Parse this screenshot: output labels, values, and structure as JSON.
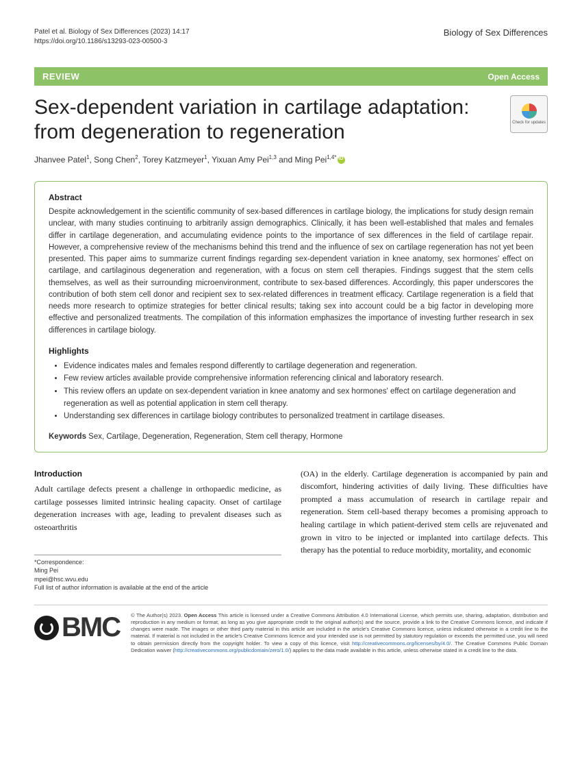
{
  "header": {
    "citation": "Patel et al. Biology of Sex Differences     (2023) 14:17",
    "doi": "https://doi.org/10.1186/s13293-023-00500-3",
    "journal": "Biology of Sex Differences"
  },
  "banner": {
    "type": "REVIEW",
    "access": "Open Access"
  },
  "title": "Sex-dependent variation in cartilage adaptation: from degeneration to regeneration",
  "checkUpdates": "Check for updates",
  "authors_html": "Jhanvee Patel<sup>1</sup>, Song Chen<sup>2</sup>, Torey Katzmeyer<sup>1</sup>, Yixuan Amy Pei<sup>1,3</sup> and Ming Pei<sup>1,4*</sup>",
  "abstract": {
    "heading": "Abstract",
    "text": "Despite acknowledgement in the scientific community of sex-based differences in cartilage biology, the implications for study design remain unclear, with many studies continuing to arbitrarily assign demographics. Clinically, it has been well-established that males and females differ in cartilage degeneration, and accumulating evidence points to the importance of sex differences in the field of cartilage repair. However, a comprehensive review of the mechanisms behind this trend and the influence of sex on cartilage regeneration has not yet been presented. This paper aims to summarize current findings regarding sex-dependent variation in knee anatomy, sex hormones' effect on cartilage, and cartilaginous degeneration and regeneration, with a focus on stem cell therapies. Findings suggest that the stem cells themselves, as well as their surrounding microenvironment, contribute to sex-based differences. Accordingly, this paper underscores the contribution of both stem cell donor and recipient sex to sex-related differences in treatment efficacy. Cartilage regeneration is a field that needs more research to optimize strategies for better clinical results; taking sex into account could be a big factor in developing more effective and personalized treatments. The compilation of this information emphasizes the importance of investing further research in sex differences in cartilage biology."
  },
  "highlights": {
    "heading": "Highlights",
    "items": [
      "Evidence indicates males and females respond differently to cartilage degeneration and regeneration.",
      "Few review articles available provide comprehensive information referencing clinical and laboratory research.",
      "This review offers an update on sex-dependent variation in knee anatomy and sex hormones' effect on cartilage degeneration and regeneration as well as potential application in stem cell therapy.",
      "Understanding sex differences in cartilage biology contributes to personalized treatment in cartilage diseases."
    ]
  },
  "keywords": {
    "label": "Keywords",
    "text": "Sex, Cartilage, Degeneration, Regeneration, Stem cell therapy, Hormone"
  },
  "intro": {
    "heading": "Introduction",
    "col1": "Adult cartilage defects present a challenge in orthopaedic medicine, as cartilage possesses limited intrinsic healing capacity. Onset of cartilage degeneration increases with age, leading to prevalent diseases such as osteoarthritis",
    "col2": "(OA) in the elderly. Cartilage degeneration is accompanied by pain and discomfort, hindering activities of daily living. These difficulties have prompted a mass accumulation of research in cartilage repair and regeneration. Stem cell-based therapy becomes a promising approach to healing cartilage in which patient-derived stem cells are rejuvenated and grown in vitro to be injected or implanted into cartilage defects. This therapy has the potential to reduce morbidity, mortality, and economic"
  },
  "correspondence": {
    "label": "*Correspondence:",
    "name": "Ming Pei",
    "email": "mpei@hsc.wvu.edu",
    "note": "Full list of author information is available at the end of the article"
  },
  "license": {
    "text_before": "© The Author(s) 2023. ",
    "bold": "Open Access",
    "text_after": " This article is licensed under a Creative Commons Attribution 4.0 International License, which permits use, sharing, adaptation, distribution and reproduction in any medium or format, as long as you give appropriate credit to the original author(s) and the source, provide a link to the Creative Commons licence, and indicate if changes were made. The images or other third party material in this article are included in the article's Creative Commons licence, unless indicated otherwise in a credit line to the material. If material is not included in the article's Creative Commons licence and your intended use is not permitted by statutory regulation or exceeds the permitted use, you will need to obtain permission directly from the copyright holder. To view a copy of this licence, visit ",
    "link1": "http://creativecommons.org/licenses/by/4.0/",
    "text_mid": ". The Creative Commons Public Domain Dedication waiver (",
    "link2": "http://creativecommons.org/publicdomain/zero/1.0/",
    "text_end": ") applies to the data made available in this article, unless otherwise stated in a credit line to the data."
  },
  "bmc": "BMC"
}
